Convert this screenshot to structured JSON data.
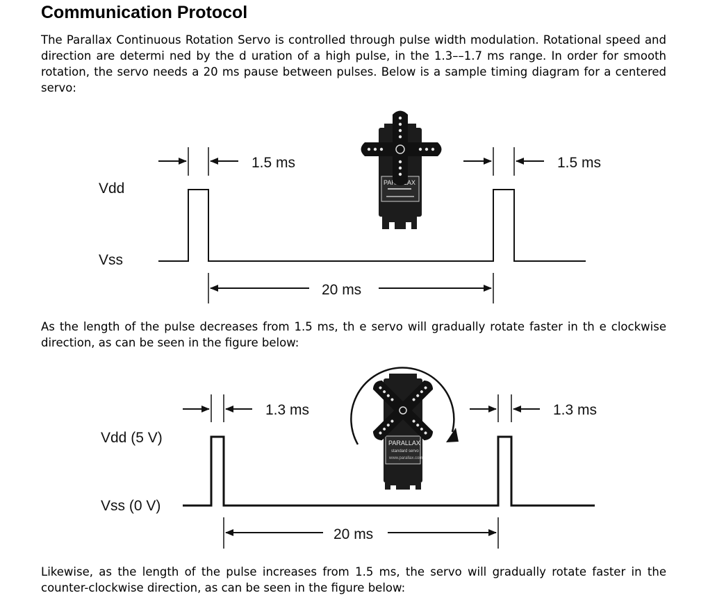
{
  "heading": "Communication Protocol",
  "paragraphs": [
    "The Parallax Continuous Rotation Servo is controlled through pulse width modulation. Rotational speed and direction are determi ned by the d uration of a high pulse, in the 1.3––1.7 ms range. In order for smooth rotation, the servo needs a 20 ms pause between pulses. Below is a sample timing diagram for a centered servo:",
    "As the length of the pulse decreases from 1.5 ms, th e servo will gradually rotate faster in th e clockwise direction, as can be seen in the figure below:",
    "Likewise, as the length of the pulse increases from 1.5 ms, the servo will gradually rotate faster in the counter-clockwise direction, as can be seen in the figure below:"
  ],
  "diagram1": {
    "high_label": "Vdd",
    "low_label": "Vss",
    "pulse_label_left": "1.5 ms",
    "pulse_label_right": "1.5 ms",
    "period_label": "20 ms",
    "servo_label": "PARALLAX"
  },
  "diagram2": {
    "high_label": "Vdd (5 V)",
    "low_label": "Vss (0 V)",
    "pulse_label_left": "1.3 ms",
    "pulse_label_right": "1.3 ms",
    "period_label": "20 ms",
    "servo_label": "PARALLAX",
    "servo_sublabel": "standard servo",
    "servo_url": "www.parallax.com"
  }
}
